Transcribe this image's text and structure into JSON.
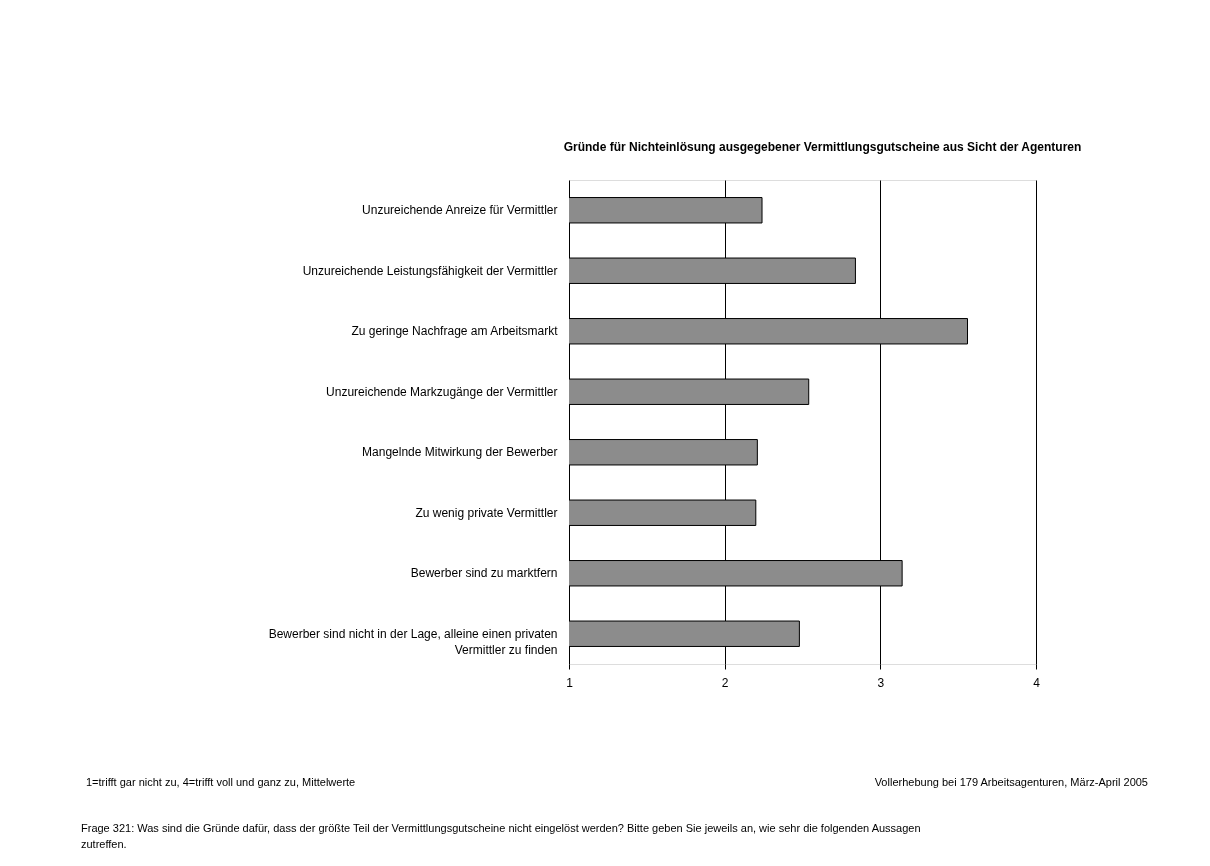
{
  "chart_data": {
    "type": "bar",
    "orientation": "horizontal",
    "title": "Gründe für Nichteinlösung ausgegebener Vermittlungsgutscheine aus Sicht der Agenturen",
    "categories": [
      "Unzureichende Anreize für Vermittler",
      "Unzureichende Leistungsfähigkeit der Vermittler",
      "Zu geringe Nachfrage am Arbeitsmarkt",
      "Unzureichende Markzugänge der Vermittler",
      "Mangelnde Mitwirkung der Bewerber",
      "Zu wenig private Vermittler",
      "Bewerber sind zu marktfern",
      "Bewerber sind nicht in der Lage, alleine einen privaten Vermittler zu finden"
    ],
    "values": [
      2.24,
      2.84,
      3.56,
      2.54,
      2.21,
      2.2,
      3.14,
      2.48
    ],
    "color": "#8c8c8c",
    "xlim": [
      1,
      4
    ],
    "xticks": [
      1,
      2,
      3,
      4
    ],
    "grid": "x",
    "annotations": [
      "1=trifft gar nicht zu, 4=trifft voll und ganz zu, Mittelwerte",
      "Vollerhebung bei 179 Arbeitsagenturen, März-April 2005",
      "Frage 321: Was sind die Gründe dafür, dass der größte Teil der Vermittlungsgutscheine nicht eingelöst werden? Bitte geben Sie jeweils an, wie sehr die folgenden Aussagen zutreffen."
    ]
  }
}
